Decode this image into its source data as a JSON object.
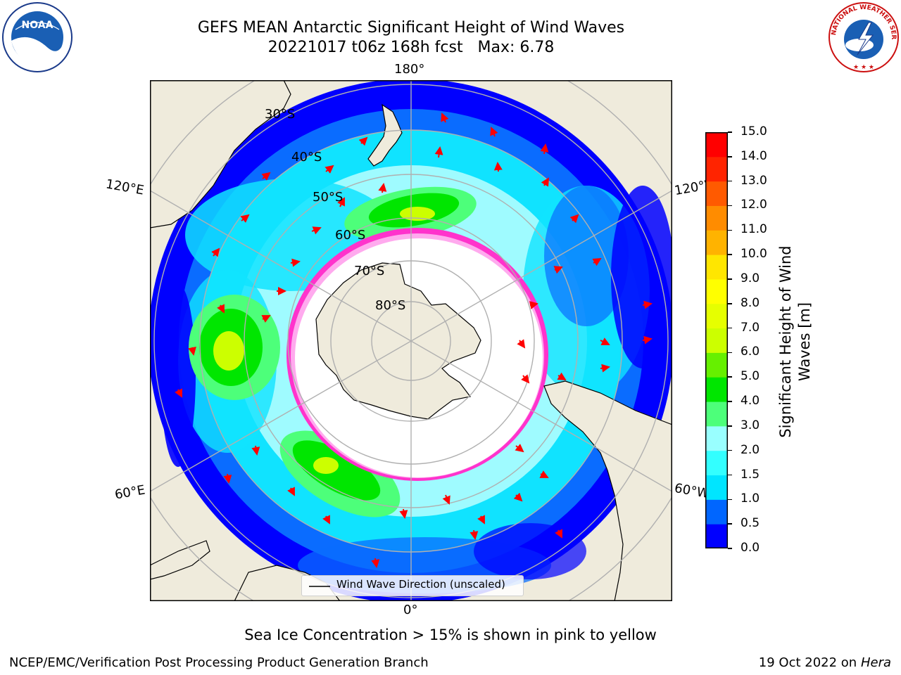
{
  "title": {
    "line1": "GEFS MEAN Antarctic Significant Height of Wind Waves",
    "line2": "20221017 t06z 168h fcst   Max: 6.78"
  },
  "map": {
    "projection": "south-polar-stereographic",
    "longitude_labels": {
      "top": "180°",
      "upper_left": "120°E",
      "upper_right": "120°W",
      "lower_left": "60°E",
      "lower_right": "60°W",
      "bottom": "0°"
    },
    "latitude_labels": [
      "30°S",
      "40°S",
      "50°S",
      "60°S",
      "70°S",
      "80°S"
    ],
    "legend": {
      "label": "Wind Wave Direction (unscaled)"
    },
    "colors": {
      "land": "#efebdc",
      "ocean_low": "#0000ff",
      "sea_ice": "#ff33cc",
      "arrows": "#ff0000",
      "grid": "#b0b0b0"
    }
  },
  "colorbar": {
    "label": "Significant Height of Wind Waves [m]",
    "label_line1": "Significant Height of Wind",
    "label_line2": "Waves [m]",
    "ticks": [
      "0.0",
      "0.5",
      "1.0",
      "1.5",
      "2.0",
      "3.0",
      "4.0",
      "5.0",
      "6.0",
      "7.0",
      "8.0",
      "9.0",
      "10.0",
      "11.0",
      "12.0",
      "13.0",
      "14.0",
      "15.0"
    ],
    "colors": [
      "#0000ff",
      "#0066ff",
      "#00e5ff",
      "#33ffff",
      "#99ffff",
      "#4dff7a",
      "#00e600",
      "#66f000",
      "#ccff00",
      "#e6ff00",
      "#ffff00",
      "#ffe600",
      "#ffb300",
      "#ff8c00",
      "#ff5a00",
      "#ff2400",
      "#ff0000"
    ]
  },
  "note": "Sea Ice Concentration > 15% is shown in pink to yellow",
  "footer": {
    "left": "NCEP/EMC/Verification Post Processing Product Generation Branch",
    "right_prefix": "19 Oct 2022 on ",
    "right_italic": "Hera"
  },
  "logos": {
    "left_text": "NOAA",
    "right_text": "NATIONAL WEATHER SERVICE"
  }
}
